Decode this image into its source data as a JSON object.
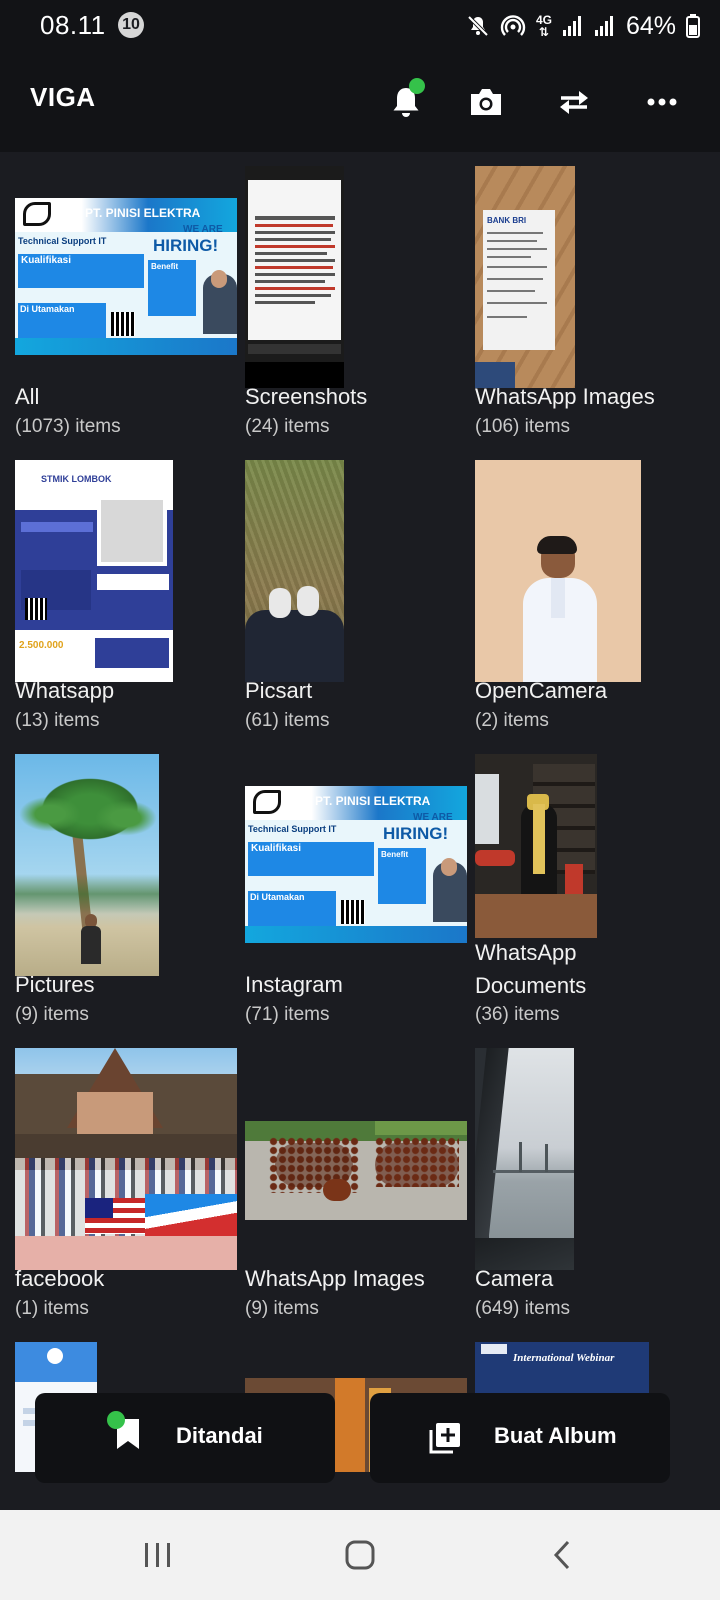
{
  "status_bar": {
    "time": "08.11",
    "notification_count": "10",
    "network": "4G",
    "battery": "64%"
  },
  "app_bar": {
    "title": "VIGA",
    "actions": [
      "bell-icon",
      "camera-icon",
      "swap-icon",
      "more-icon"
    ]
  },
  "albums": [
    {
      "name": "All",
      "count": "(1073) items"
    },
    {
      "name": "Screenshots",
      "count": "(24) items"
    },
    {
      "name": "WhatsApp Images",
      "count": "(106) items"
    },
    {
      "name": "Whatsapp",
      "count": "(13) items"
    },
    {
      "name": "Picsart",
      "count": "(61) items"
    },
    {
      "name": "OpenCamera",
      "count": "(2) items"
    },
    {
      "name": "Pictures",
      "count": "(9) items"
    },
    {
      "name": "Instagram",
      "count": "(71) items"
    },
    {
      "name": "WhatsApp Documents",
      "count": "(36) items"
    },
    {
      "name": "facebook",
      "count": "(1) items"
    },
    {
      "name": "WhatsApp Images",
      "count": "(9) items"
    },
    {
      "name": "Camera",
      "count": "(649) items"
    }
  ],
  "thumb_text": {
    "company": "PT. PINISI ELEKTRA",
    "we_are": "WE ARE",
    "hiring": "HIRING!",
    "role": "Technical Support IT",
    "qualification": "Kualifikasi",
    "benefit": "Benefit",
    "priority": "Di Utamakan",
    "school": "STMIK LOMBOK",
    "price": "2.500.000",
    "bank": "BANK BRI",
    "webinar": "International Webinar"
  },
  "bottom_actions": {
    "bookmarked": "Ditandai",
    "create_album": "Buat Album"
  },
  "colors": {
    "background": "#1b1c21",
    "app_bar": "#121316",
    "accent_green": "#35c24a",
    "nav_bar": "#f2f2f2"
  }
}
